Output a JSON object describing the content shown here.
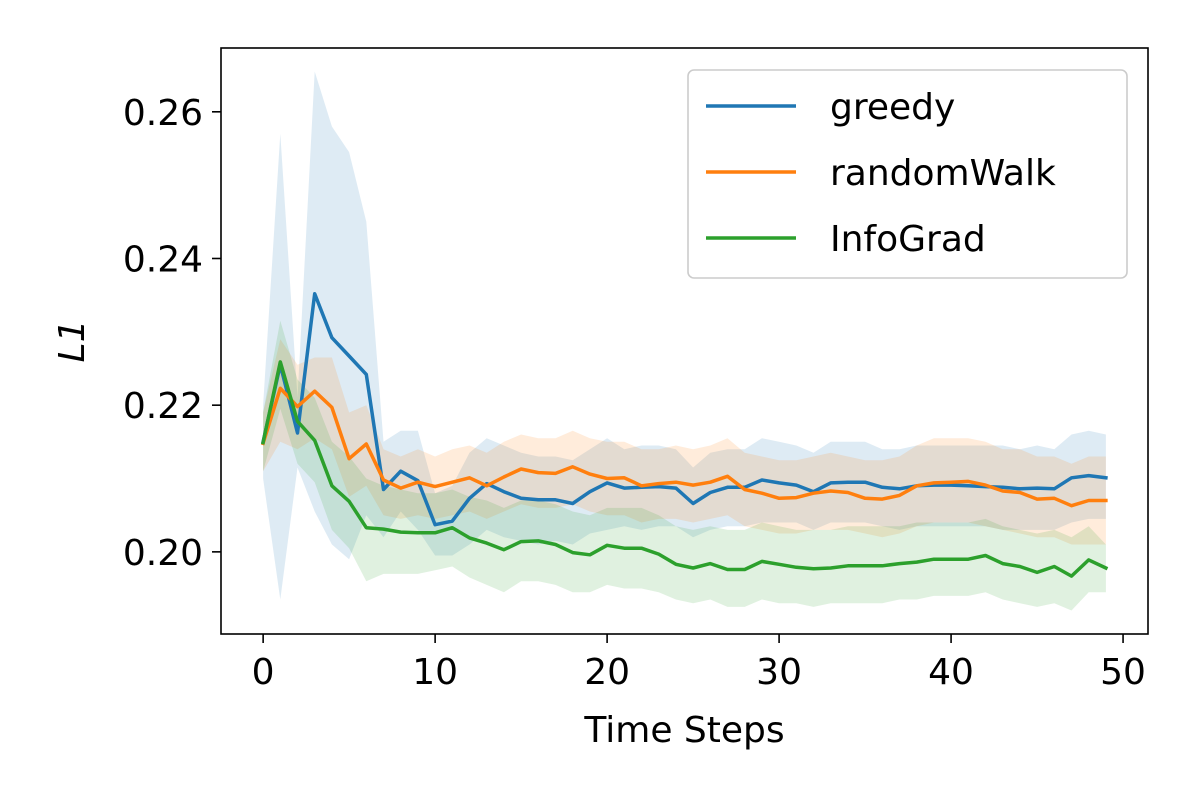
{
  "chart_data": {
    "type": "line",
    "title": "",
    "xlabel": "Time Steps",
    "ylabel": "L1",
    "xlim": [
      -2.45,
      51.45
    ],
    "ylim": [
      0.1888,
      0.2687
    ],
    "xticks": [
      0,
      10,
      20,
      30,
      40,
      50
    ],
    "yticks": [
      0.2,
      0.22,
      0.24,
      0.26
    ],
    "xtick_labels": [
      "0",
      "10",
      "20",
      "30",
      "40",
      "50"
    ],
    "ytick_labels": [
      "0.20",
      "0.22",
      "0.24",
      "0.26"
    ],
    "grid": false,
    "legend_position": "top-right",
    "x": [
      0,
      1,
      2,
      3,
      4,
      5,
      6,
      7,
      8,
      9,
      10,
      11,
      12,
      13,
      14,
      15,
      16,
      17,
      18,
      19,
      20,
      21,
      22,
      23,
      24,
      25,
      26,
      27,
      28,
      29,
      30,
      31,
      32,
      33,
      34,
      35,
      36,
      37,
      38,
      39,
      40,
      41,
      42,
      43,
      44,
      45,
      46,
      47,
      48,
      49
    ],
    "series": [
      {
        "name": "greedy",
        "color": "#1f77b4",
        "values": [
          0.215,
          0.2255,
          0.2162,
          0.2352,
          0.2292,
          0.2267,
          0.2242,
          0.2085,
          0.211,
          0.2097,
          0.2037,
          0.2042,
          0.2073,
          0.2093,
          0.2082,
          0.2073,
          0.2071,
          0.2071,
          0.2066,
          0.2082,
          0.2094,
          0.2087,
          0.2088,
          0.2089,
          0.2087,
          0.2066,
          0.2081,
          0.2088,
          0.2088,
          0.2098,
          0.2094,
          0.2091,
          0.2082,
          0.2094,
          0.2095,
          0.2095,
          0.2088,
          0.2086,
          0.209,
          0.2091,
          0.2091,
          0.209,
          0.2089,
          0.2088,
          0.2086,
          0.2087,
          0.2086,
          0.2101,
          0.2104,
          0.2101
        ],
        "lower": [
          0.21,
          0.1935,
          0.2115,
          0.2055,
          0.201,
          0.199,
          0.205,
          0.202,
          0.2055,
          0.203,
          0.1995,
          0.1995,
          0.201,
          0.203,
          0.202,
          0.2015,
          0.201,
          0.2015,
          0.201,
          0.2025,
          0.203,
          0.2035,
          0.203,
          0.2035,
          0.2035,
          0.202,
          0.203,
          0.2035,
          0.2035,
          0.204,
          0.204,
          0.204,
          0.203,
          0.204,
          0.204,
          0.204,
          0.2035,
          0.203,
          0.2035,
          0.2035,
          0.2035,
          0.2035,
          0.2035,
          0.203,
          0.203,
          0.203,
          0.203,
          0.204,
          0.2045,
          0.2045
        ],
        "upper": [
          0.22,
          0.257,
          0.221,
          0.2655,
          0.258,
          0.2545,
          0.245,
          0.215,
          0.2165,
          0.2165,
          0.208,
          0.209,
          0.2135,
          0.2155,
          0.2145,
          0.2135,
          0.213,
          0.213,
          0.2125,
          0.214,
          0.2155,
          0.214,
          0.2145,
          0.2145,
          0.214,
          0.2115,
          0.2135,
          0.214,
          0.214,
          0.2155,
          0.215,
          0.2145,
          0.2135,
          0.215,
          0.215,
          0.215,
          0.214,
          0.214,
          0.2145,
          0.2145,
          0.2145,
          0.2145,
          0.2145,
          0.2145,
          0.214,
          0.2145,
          0.214,
          0.216,
          0.2165,
          0.216
        ]
      },
      {
        "name": "randomWalk",
        "color": "#ff7f0e",
        "values": [
          0.2148,
          0.2223,
          0.2198,
          0.2219,
          0.2197,
          0.2127,
          0.2147,
          0.2098,
          0.2087,
          0.2095,
          0.2089,
          0.2095,
          0.2101,
          0.209,
          0.2102,
          0.2113,
          0.2108,
          0.2107,
          0.2116,
          0.2106,
          0.21,
          0.2101,
          0.209,
          0.2093,
          0.2095,
          0.2091,
          0.2095,
          0.2103,
          0.2085,
          0.208,
          0.2073,
          0.2074,
          0.208,
          0.2083,
          0.2081,
          0.2073,
          0.2072,
          0.2077,
          0.209,
          0.2094,
          0.2095,
          0.2096,
          0.2091,
          0.2083,
          0.2081,
          0.2072,
          0.2073,
          0.2063,
          0.207,
          0.207
        ],
        "lower": [
          0.211,
          0.215,
          0.214,
          0.2155,
          0.214,
          0.2075,
          0.209,
          0.205,
          0.2045,
          0.205,
          0.2045,
          0.205,
          0.2055,
          0.2045,
          0.2055,
          0.2065,
          0.206,
          0.206,
          0.2065,
          0.2055,
          0.205,
          0.205,
          0.204,
          0.2045,
          0.2045,
          0.204,
          0.2045,
          0.205,
          0.2035,
          0.203,
          0.2025,
          0.2025,
          0.203,
          0.203,
          0.203,
          0.2025,
          0.202,
          0.2025,
          0.2035,
          0.204,
          0.204,
          0.204,
          0.2035,
          0.203,
          0.2025,
          0.202,
          0.202,
          0.201,
          0.201,
          0.201
        ],
        "upper": [
          0.219,
          0.229,
          0.2255,
          0.2265,
          0.2265,
          0.219,
          0.22,
          0.214,
          0.213,
          0.214,
          0.213,
          0.214,
          0.2145,
          0.2135,
          0.215,
          0.216,
          0.2155,
          0.2155,
          0.2165,
          0.2155,
          0.215,
          0.215,
          0.214,
          0.214,
          0.2145,
          0.214,
          0.2145,
          0.2155,
          0.2135,
          0.213,
          0.2125,
          0.2125,
          0.213,
          0.2135,
          0.213,
          0.2125,
          0.2125,
          0.213,
          0.2145,
          0.2155,
          0.2155,
          0.2155,
          0.215,
          0.214,
          0.214,
          0.213,
          0.213,
          0.212,
          0.213,
          0.213
        ]
      },
      {
        "name": "InfoGrad",
        "color": "#2ca02c",
        "values": [
          0.2149,
          0.2259,
          0.2178,
          0.2152,
          0.209,
          0.2069,
          0.2033,
          0.2031,
          0.2027,
          0.2026,
          0.2026,
          0.2033,
          0.2019,
          0.2012,
          0.2003,
          0.2014,
          0.2015,
          0.201,
          0.1999,
          0.1996,
          0.2009,
          0.2005,
          0.2005,
          0.1997,
          0.1983,
          0.1978,
          0.1984,
          0.1976,
          0.1976,
          0.1987,
          0.1983,
          0.1979,
          0.1977,
          0.1978,
          0.1981,
          0.1981,
          0.1981,
          0.1984,
          0.1986,
          0.199,
          0.199,
          0.199,
          0.1995,
          0.1984,
          0.198,
          0.1972,
          0.198,
          0.1967,
          0.1989,
          0.1978
        ],
        "lower": [
          0.211,
          0.2195,
          0.212,
          0.2095,
          0.203,
          0.2005,
          0.196,
          0.197,
          0.197,
          0.197,
          0.1975,
          0.198,
          0.1965,
          0.1955,
          0.1945,
          0.196,
          0.196,
          0.1955,
          0.1945,
          0.1945,
          0.1955,
          0.195,
          0.195,
          0.1945,
          0.1935,
          0.193,
          0.1935,
          0.1925,
          0.1925,
          0.1935,
          0.193,
          0.193,
          0.1925,
          0.193,
          0.193,
          0.193,
          0.193,
          0.1935,
          0.1935,
          0.194,
          0.194,
          0.194,
          0.1945,
          0.1935,
          0.193,
          0.1925,
          0.193,
          0.192,
          0.1945,
          0.1945
        ],
        "upper": [
          0.219,
          0.2315,
          0.2235,
          0.221,
          0.215,
          0.213,
          0.21,
          0.209,
          0.2085,
          0.208,
          0.208,
          0.2085,
          0.2075,
          0.207,
          0.206,
          0.207,
          0.207,
          0.2065,
          0.2055,
          0.205,
          0.206,
          0.206,
          0.206,
          0.205,
          0.2035,
          0.203,
          0.2035,
          0.203,
          0.203,
          0.204,
          0.2035,
          0.203,
          0.203,
          0.203,
          0.2035,
          0.2035,
          0.2035,
          0.2035,
          0.204,
          0.204,
          0.204,
          0.204,
          0.2045,
          0.2035,
          0.203,
          0.2025,
          0.203,
          0.202,
          0.2035,
          0.201
        ]
      }
    ]
  }
}
